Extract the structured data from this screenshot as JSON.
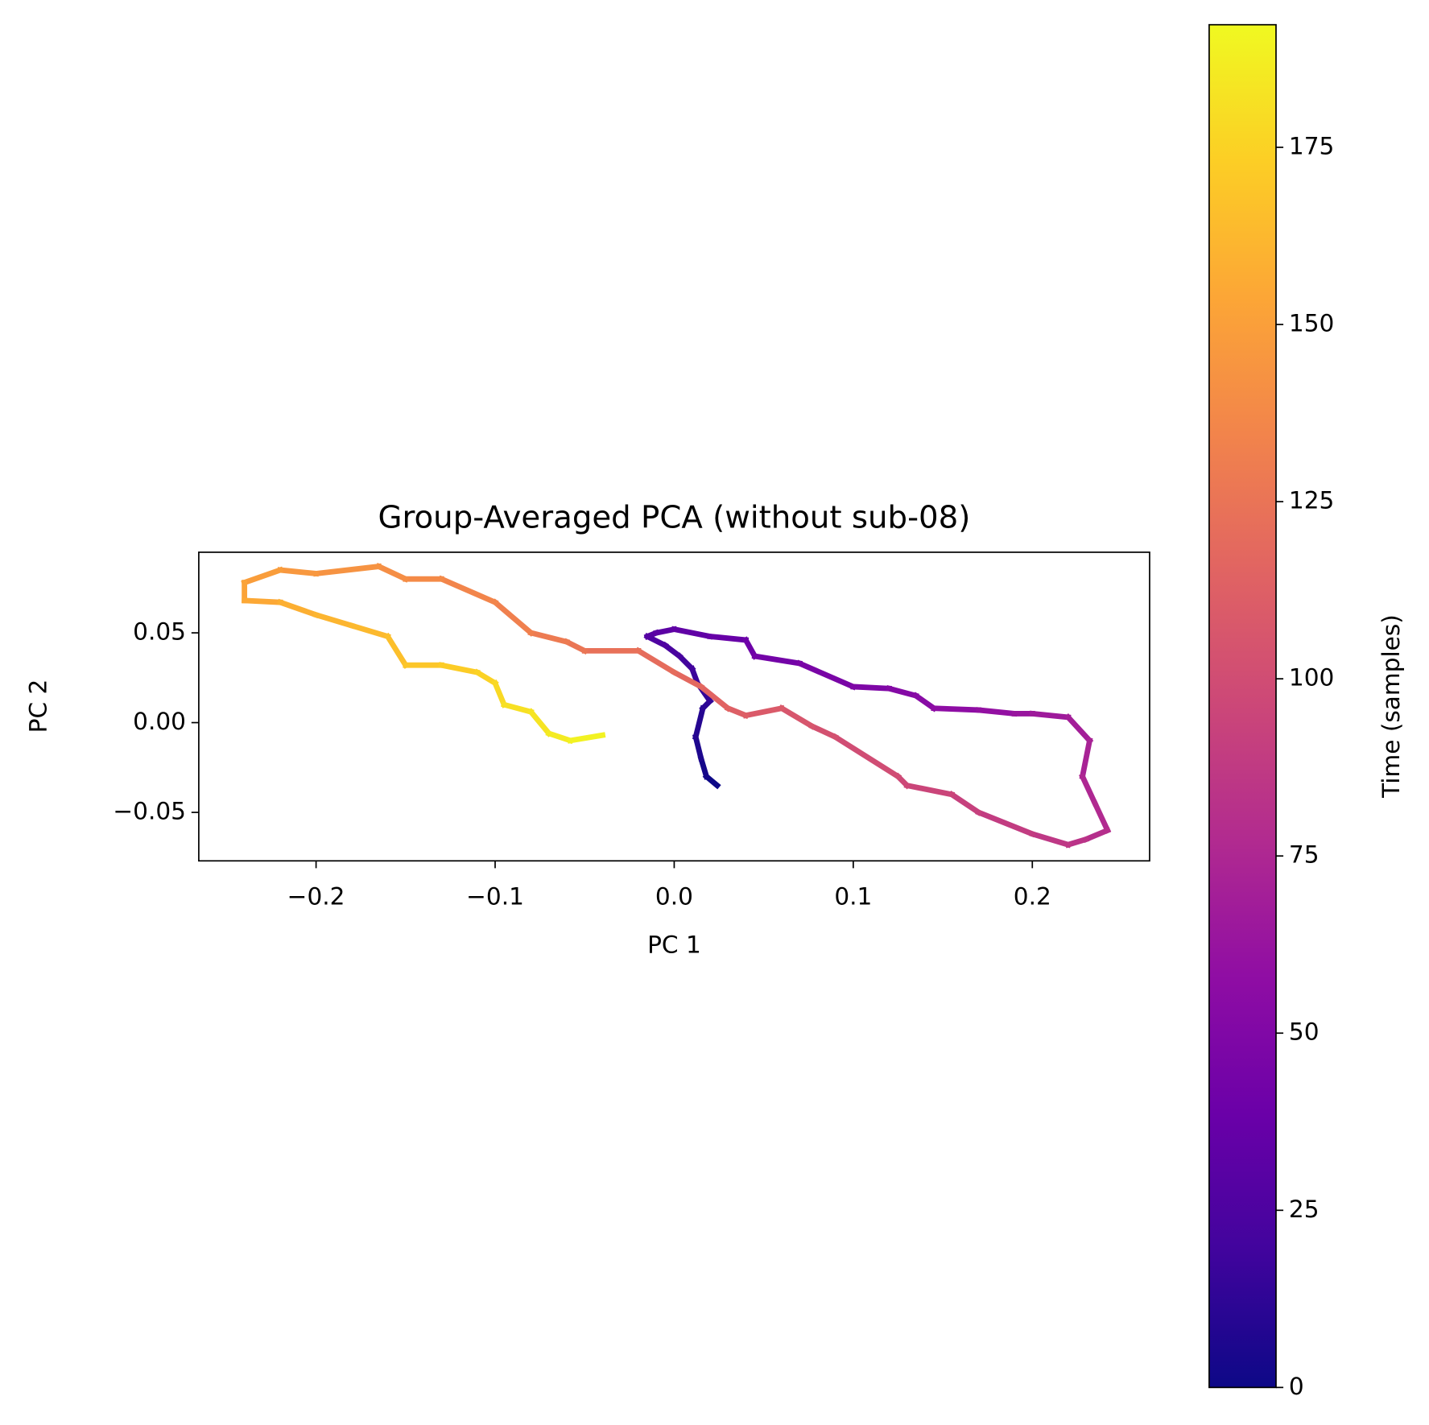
{
  "chart_data": {
    "type": "colored-line",
    "title": "Group-Averaged PCA (without sub-08)",
    "x_label": "PC 1",
    "y_label": "PC 2",
    "x": [
      0.024,
      0.018,
      0.015,
      0.012,
      0.016,
      0.02,
      0.013,
      0.01,
      0.003,
      -0.005,
      -0.015,
      -0.01,
      0.0,
      0.02,
      0.04,
      0.045,
      0.07,
      0.1,
      0.12,
      0.135,
      0.145,
      0.17,
      0.19,
      0.2,
      0.22,
      0.232,
      0.228,
      0.235,
      0.242,
      0.23,
      0.22,
      0.2,
      0.17,
      0.155,
      0.13,
      0.125,
      0.09,
      0.077,
      0.06,
      0.04,
      0.03,
      0.015,
      0.0,
      -0.02,
      -0.05,
      -0.06,
      -0.08,
      -0.1,
      -0.13,
      -0.15,
      -0.165,
      -0.2,
      -0.22,
      -0.24,
      -0.24,
      -0.22,
      -0.2,
      -0.18,
      -0.16,
      -0.15,
      -0.13,
      -0.11,
      -0.1,
      -0.095,
      -0.08,
      -0.07,
      -0.058,
      -0.04
    ],
    "y": [
      -0.035,
      -0.03,
      -0.02,
      -0.008,
      0.008,
      0.012,
      0.022,
      0.03,
      0.037,
      0.043,
      0.048,
      0.05,
      0.052,
      0.048,
      0.046,
      0.037,
      0.033,
      0.02,
      0.019,
      0.015,
      0.008,
      0.007,
      0.005,
      0.005,
      0.003,
      -0.01,
      -0.03,
      -0.045,
      -0.06,
      -0.065,
      -0.068,
      -0.062,
      -0.05,
      -0.04,
      -0.035,
      -0.03,
      -0.008,
      -0.002,
      0.008,
      0.004,
      0.008,
      0.02,
      0.028,
      0.04,
      0.04,
      0.045,
      0.05,
      0.067,
      0.08,
      0.08,
      0.087,
      0.083,
      0.085,
      0.078,
      0.068,
      0.067,
      0.06,
      0.054,
      0.048,
      0.032,
      0.032,
      0.028,
      0.022,
      0.01,
      0.006,
      -0.006,
      -0.01,
      -0.007
    ],
    "time": [
      0,
      3,
      6,
      9,
      11,
      14,
      17,
      20,
      23,
      26,
      29,
      32,
      34,
      37,
      40,
      43,
      46,
      49,
      52,
      54,
      57,
      60,
      63,
      66,
      69,
      72,
      75,
      77,
      80,
      83,
      86,
      89,
      92,
      95,
      97,
      100,
      103,
      106,
      109,
      112,
      115,
      118,
      120,
      123,
      126,
      129,
      132,
      135,
      138,
      140,
      143,
      146,
      149,
      152,
      155,
      158,
      161,
      163,
      166,
      169,
      172,
      175,
      178,
      181,
      183,
      186,
      189,
      192
    ],
    "xlim": [
      -0.2655,
      0.2655
    ],
    "xticks": [
      {
        "value": -0.2,
        "label": "−0.2"
      },
      {
        "value": -0.1,
        "label": "−0.1"
      },
      {
        "value": 0,
        "label": "0.0"
      },
      0.1,
      0.2
    ],
    "ylim": [
      -0.077,
      0.0949
    ],
    "yticks": [
      {
        "value": -0.05,
        "label": "−0.05"
      },
      {
        "value": 0,
        "label": "0.00"
      },
      0.05
    ],
    "cmap": "plasma",
    "colorbar": {
      "label": "Time (samples)",
      "lim": [
        0,
        192.3
      ],
      "ticks": [
        0,
        25,
        50,
        75,
        100,
        125,
        150,
        175
      ]
    }
  }
}
